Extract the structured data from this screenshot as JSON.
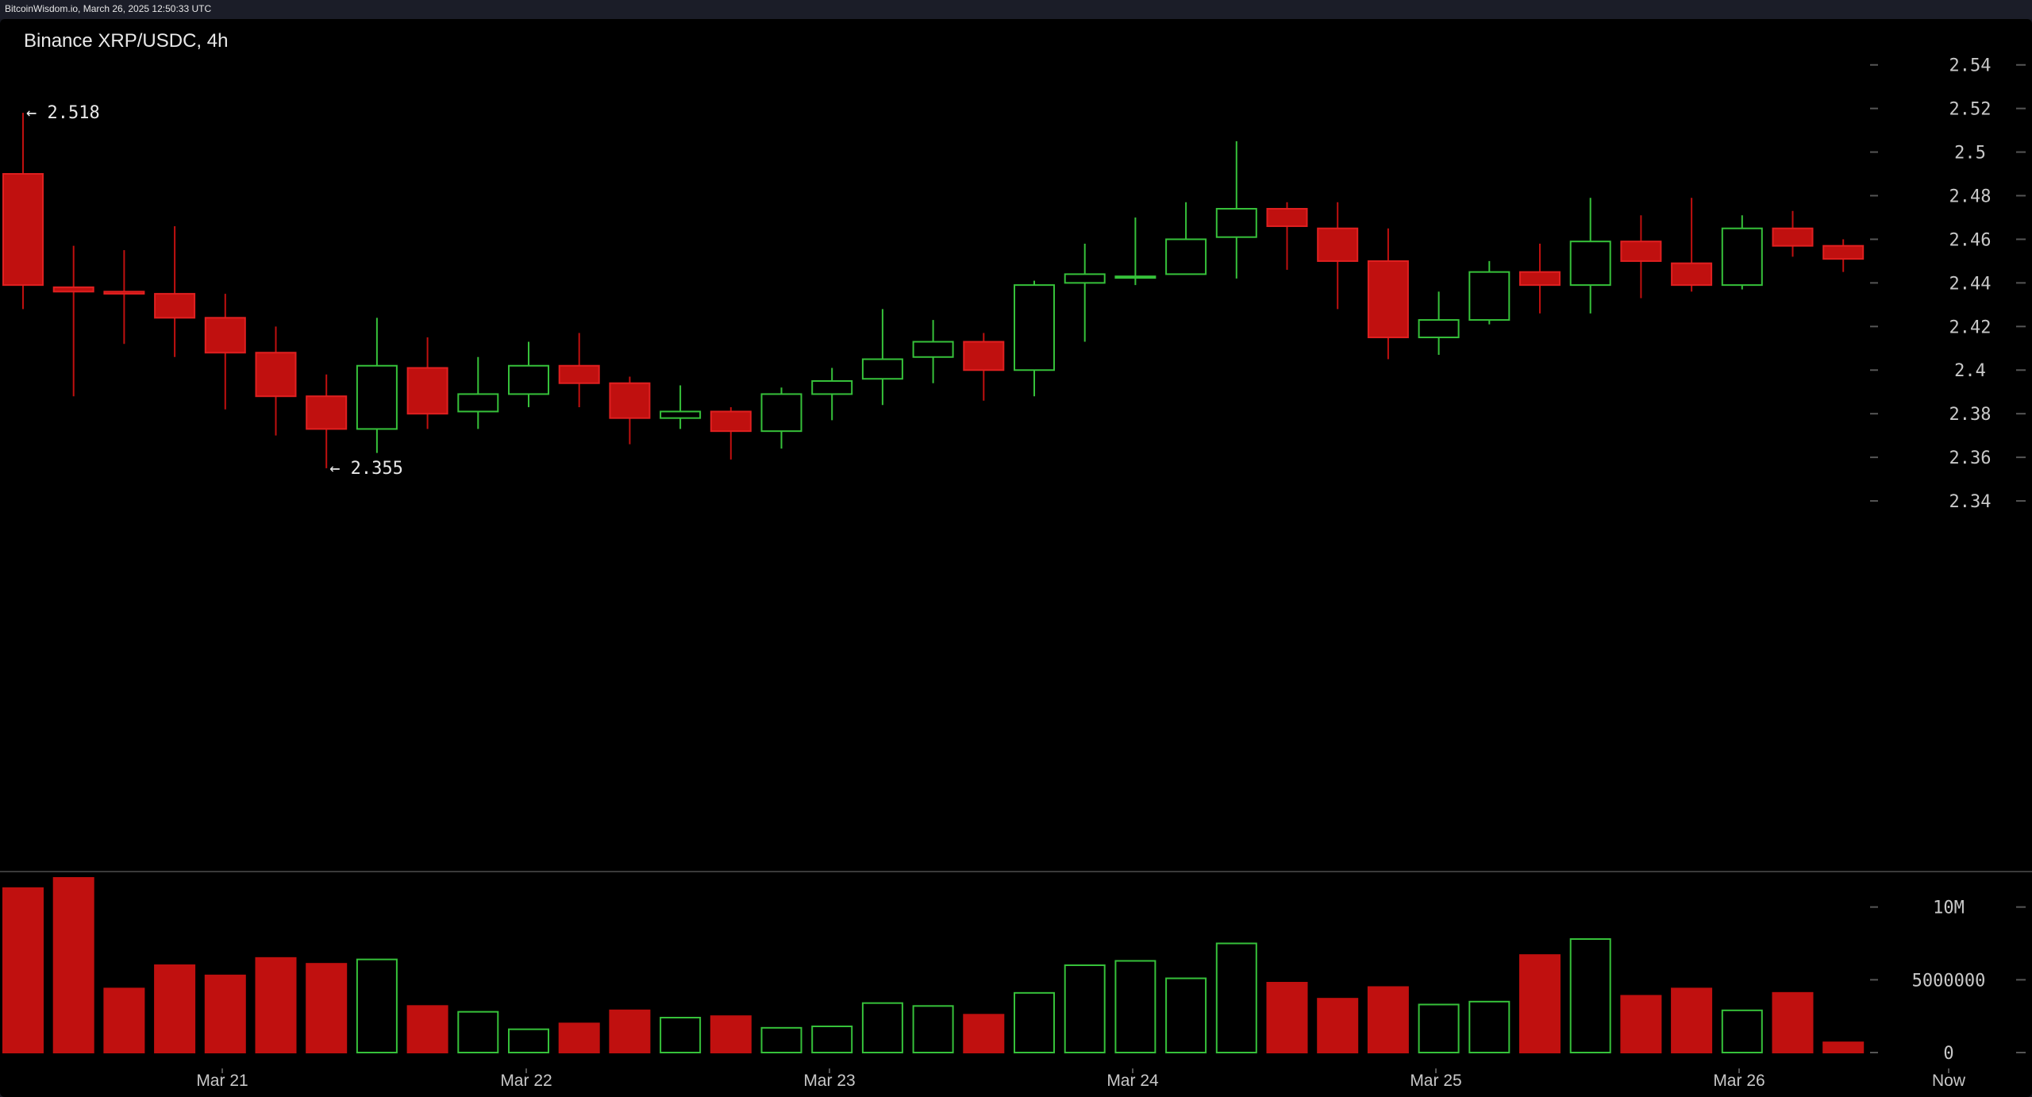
{
  "header": {
    "text": "BitcoinWisdom.io, March 26, 2025 12:50:33 UTC"
  },
  "chart_data": {
    "type": "candlestick",
    "title": "Binance XRP/USDC, 4h",
    "colors": {
      "up": "#36c13a",
      "down": "#c0100f",
      "down_edge": "#e02020",
      "grid_tick": "#555",
      "text": "#c8c8c8"
    },
    "price_axis": {
      "ticks": [
        "2.54",
        "2.52",
        "2.5",
        "2.48",
        "2.46",
        "2.44",
        "2.42",
        "2.4",
        "2.38",
        "2.36",
        "2.34"
      ],
      "ylim": [
        2.324,
        2.553
      ]
    },
    "volume_axis": {
      "ticks": [
        "10M",
        "5000000",
        "0"
      ],
      "ylim": [
        0,
        12000000
      ]
    },
    "x_labels": [
      "Mar 21",
      "Mar 22",
      "Mar 23",
      "Mar 24",
      "Mar 25",
      "Mar 26",
      "Now"
    ],
    "annotations": [
      {
        "text": "← 2.518",
        "candle": 0,
        "price": 2.518
      },
      {
        "text": "← 2.355",
        "candle": 6,
        "price": 2.355
      }
    ],
    "candles": [
      {
        "o": 2.49,
        "h": 2.518,
        "l": 2.428,
        "c": 2.439,
        "v": 11300000
      },
      {
        "o": 2.438,
        "h": 2.457,
        "l": 2.388,
        "c": 2.436,
        "v": 12000000
      },
      {
        "o": 2.436,
        "h": 2.455,
        "l": 2.412,
        "c": 2.435,
        "v": 4400000
      },
      {
        "o": 2.435,
        "h": 2.466,
        "l": 2.406,
        "c": 2.424,
        "v": 6000000
      },
      {
        "o": 2.424,
        "h": 2.435,
        "l": 2.382,
        "c": 2.408,
        "v": 5300000
      },
      {
        "o": 2.408,
        "h": 2.42,
        "l": 2.37,
        "c": 2.388,
        "v": 6500000
      },
      {
        "o": 2.388,
        "h": 2.398,
        "l": 2.355,
        "c": 2.373,
        "v": 6100000
      },
      {
        "o": 2.373,
        "h": 2.424,
        "l": 2.362,
        "c": 2.402,
        "v": 6400000
      },
      {
        "o": 2.401,
        "h": 2.415,
        "l": 2.373,
        "c": 2.38,
        "v": 3200000
      },
      {
        "o": 2.381,
        "h": 2.406,
        "l": 2.373,
        "c": 2.389,
        "v": 2800000
      },
      {
        "o": 2.389,
        "h": 2.413,
        "l": 2.383,
        "c": 2.402,
        "v": 1600000
      },
      {
        "o": 2.402,
        "h": 2.417,
        "l": 2.383,
        "c": 2.394,
        "v": 2000000
      },
      {
        "o": 2.394,
        "h": 2.397,
        "l": 2.366,
        "c": 2.378,
        "v": 2900000
      },
      {
        "o": 2.378,
        "h": 2.393,
        "l": 2.373,
        "c": 2.381,
        "v": 2400000
      },
      {
        "o": 2.381,
        "h": 2.383,
        "l": 2.359,
        "c": 2.372,
        "v": 2500000
      },
      {
        "o": 2.372,
        "h": 2.392,
        "l": 2.364,
        "c": 2.389,
        "v": 1700000
      },
      {
        "o": 2.389,
        "h": 2.401,
        "l": 2.377,
        "c": 2.395,
        "v": 1800000
      },
      {
        "o": 2.396,
        "h": 2.428,
        "l": 2.384,
        "c": 2.405,
        "v": 3400000
      },
      {
        "o": 2.406,
        "h": 2.423,
        "l": 2.394,
        "c": 2.413,
        "v": 3200000
      },
      {
        "o": 2.413,
        "h": 2.417,
        "l": 2.386,
        "c": 2.4,
        "v": 2600000
      },
      {
        "o": 2.4,
        "h": 2.441,
        "l": 2.388,
        "c": 2.439,
        "v": 4100000
      },
      {
        "o": 2.44,
        "h": 2.458,
        "l": 2.413,
        "c": 2.444,
        "v": 6000000
      },
      {
        "o": 2.443,
        "h": 2.47,
        "l": 2.439,
        "c": 2.443,
        "v": 6300000
      },
      {
        "o": 2.444,
        "h": 2.477,
        "l": 2.444,
        "c": 2.46,
        "v": 5100000
      },
      {
        "o": 2.461,
        "h": 2.505,
        "l": 2.442,
        "c": 2.474,
        "v": 7500000
      },
      {
        "o": 2.474,
        "h": 2.477,
        "l": 2.446,
        "c": 2.466,
        "v": 4800000
      },
      {
        "o": 2.465,
        "h": 2.477,
        "l": 2.428,
        "c": 2.45,
        "v": 3700000
      },
      {
        "o": 2.45,
        "h": 2.465,
        "l": 2.405,
        "c": 2.415,
        "v": 4500000
      },
      {
        "o": 2.415,
        "h": 2.436,
        "l": 2.407,
        "c": 2.423,
        "v": 3300000
      },
      {
        "o": 2.423,
        "h": 2.45,
        "l": 2.421,
        "c": 2.445,
        "v": 3500000
      },
      {
        "o": 2.445,
        "h": 2.458,
        "l": 2.426,
        "c": 2.439,
        "v": 6700000
      },
      {
        "o": 2.439,
        "h": 2.479,
        "l": 2.426,
        "c": 2.459,
        "v": 7800000
      },
      {
        "o": 2.459,
        "h": 2.471,
        "l": 2.433,
        "c": 2.45,
        "v": 3900000
      },
      {
        "o": 2.449,
        "h": 2.479,
        "l": 2.436,
        "c": 2.439,
        "v": 4400000
      },
      {
        "o": 2.439,
        "h": 2.471,
        "l": 2.437,
        "c": 2.465,
        "v": 2900000
      },
      {
        "o": 2.465,
        "h": 2.473,
        "l": 2.452,
        "c": 2.457,
        "v": 4100000
      },
      {
        "o": 2.457,
        "h": 2.46,
        "l": 2.445,
        "c": 2.451,
        "v": 700000
      }
    ]
  }
}
